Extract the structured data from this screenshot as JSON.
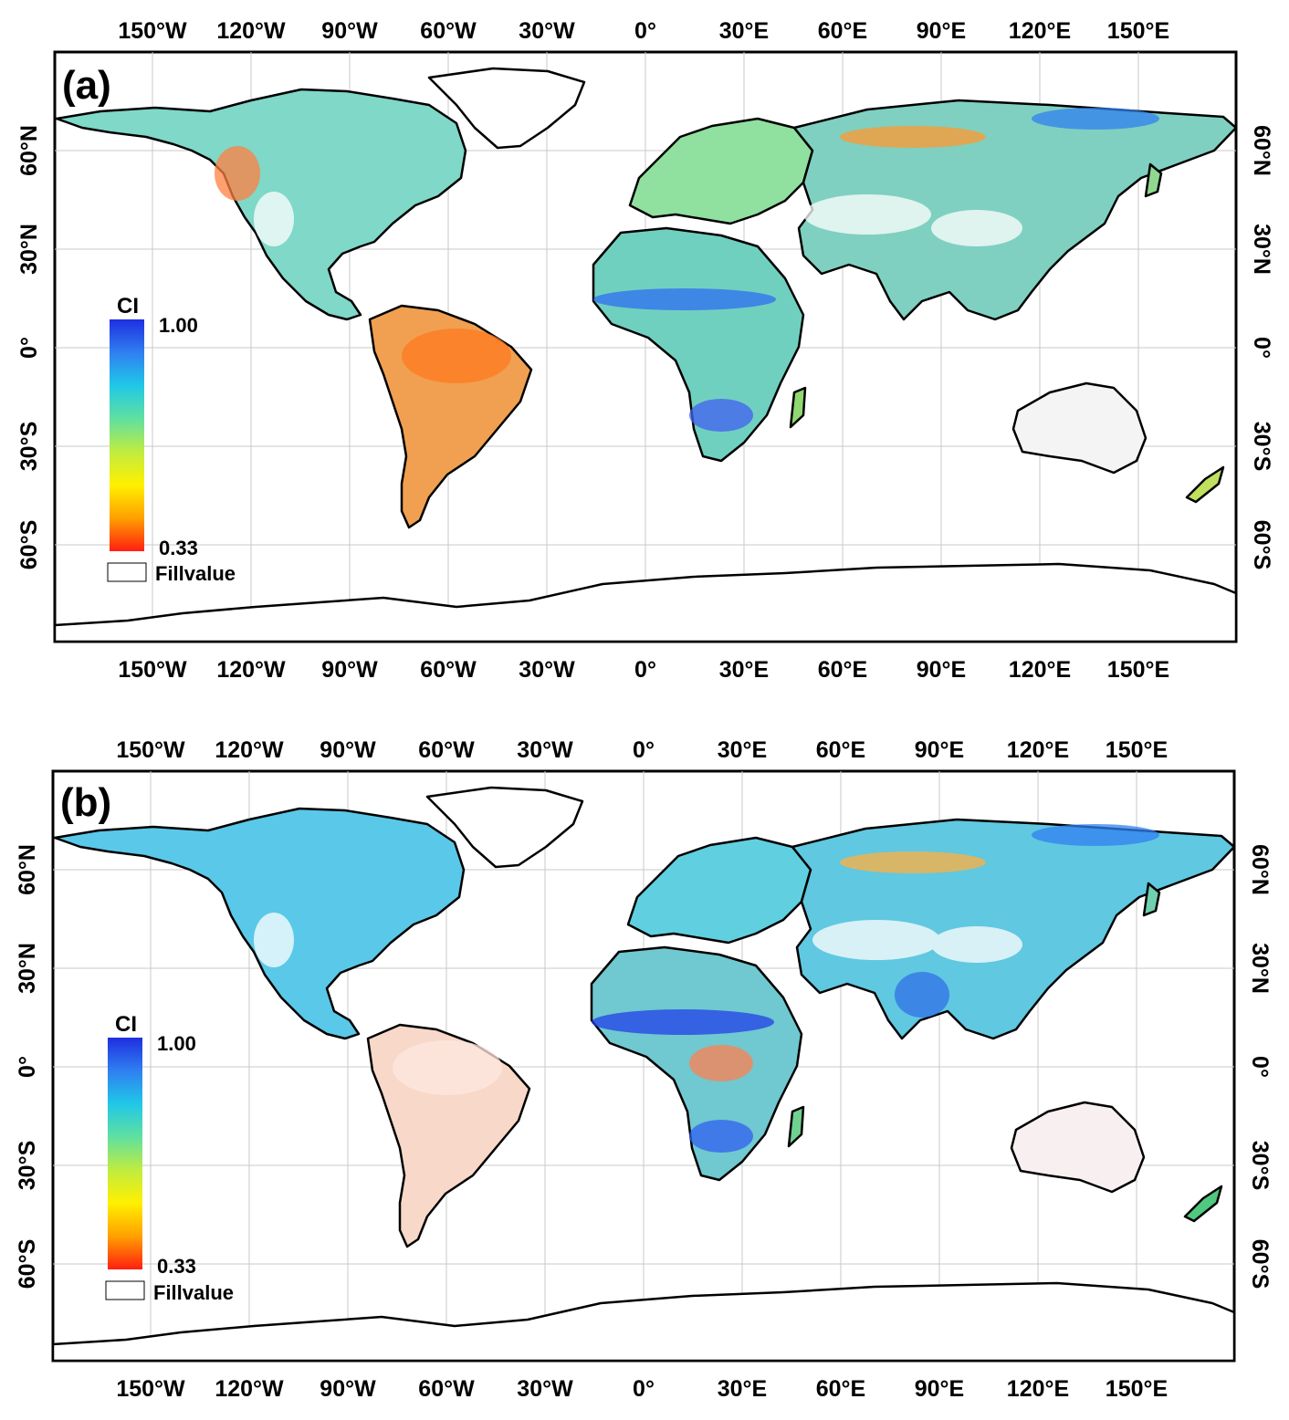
{
  "panels": [
    {
      "id": "a",
      "label": "(a)",
      "legend": {
        "title": "CI",
        "max": "1.00",
        "min": "0.33",
        "fill_label": "Fillvalue"
      }
    },
    {
      "id": "b",
      "label": "(b)",
      "legend": {
        "title": "CI",
        "max": "1.00",
        "min": "0.33",
        "fill_label": "Fillvalue"
      }
    }
  ],
  "lon_ticks": [
    "150°W",
    "120°W",
    "90°W",
    "60°W",
    "30°W",
    "0°",
    "30°E",
    "60°E",
    "90°E",
    "120°E",
    "150°E"
  ],
  "lat_ticks": [
    "60°N",
    "30°N",
    "0°",
    "30°S",
    "60°S"
  ],
  "colorbar": {
    "stops": [
      "#1f2fe0",
      "#2f7ff0",
      "#20c8e8",
      "#60e0a0",
      "#c0ec40",
      "#fff000",
      "#ffa000",
      "#ff1f10"
    ]
  },
  "colors": {
    "outline": "#000000",
    "grid": "#bfbfbf",
    "fill_value": "#ffffff"
  }
}
